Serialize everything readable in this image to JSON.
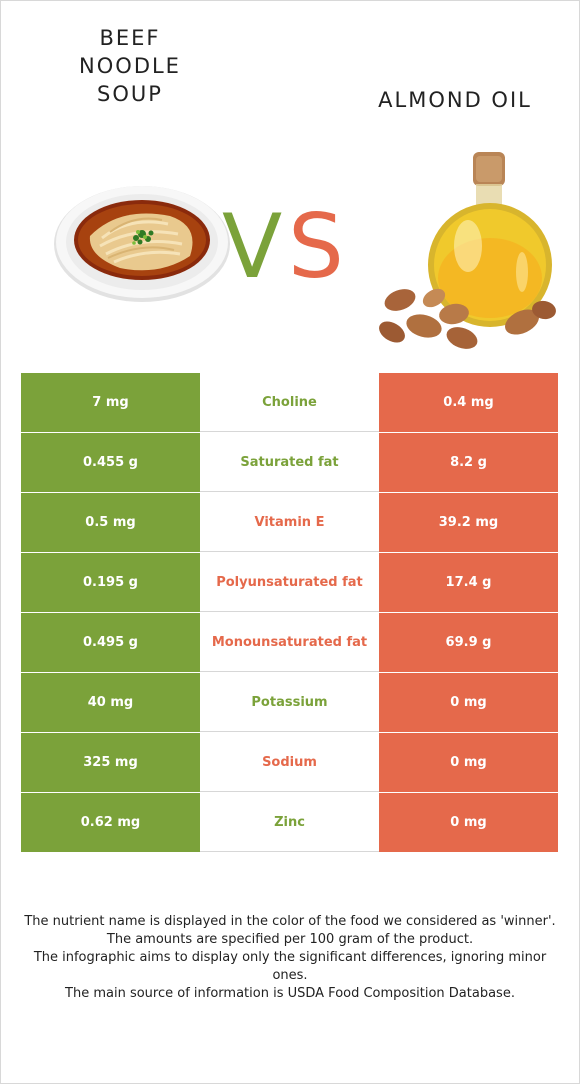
{
  "left_food": {
    "name": "BEEF\nNOODLE\nSOUP"
  },
  "right_food": {
    "name": "ALMOND OIL"
  },
  "vs_label": "VS",
  "colors": {
    "left": "#7ba23a",
    "right": "#e5694b"
  },
  "nutrients": [
    {
      "left": "7 mg",
      "name": "Choline",
      "right": "0.4 mg",
      "winner": "left"
    },
    {
      "left": "0.455 g",
      "name": "Saturated fat",
      "right": "8.2 g",
      "winner": "left"
    },
    {
      "left": "0.5 mg",
      "name": "Vitamin E",
      "right": "39.2 mg",
      "winner": "right"
    },
    {
      "left": "0.195 g",
      "name": "Polyunsaturated fat",
      "right": "17.4 g",
      "winner": "right"
    },
    {
      "left": "0.495 g",
      "name": "Monounsaturated fat",
      "right": "69.9 g",
      "winner": "right"
    },
    {
      "left": "40 mg",
      "name": "Potassium",
      "right": "0 mg",
      "winner": "left"
    },
    {
      "left": "325 mg",
      "name": "Sodium",
      "right": "0 mg",
      "winner": "right"
    },
    {
      "left": "0.62 mg",
      "name": "Zinc",
      "right": "0 mg",
      "winner": "left"
    }
  ],
  "footnote": [
    "The nutrient name is displayed in the color of the food we considered as 'winner'.",
    "The amounts are specified per 100 gram of the product.",
    "The infographic aims to display only the significant differences, ignoring minor ones.",
    "The main source of information is USDA Food Composition Database."
  ]
}
